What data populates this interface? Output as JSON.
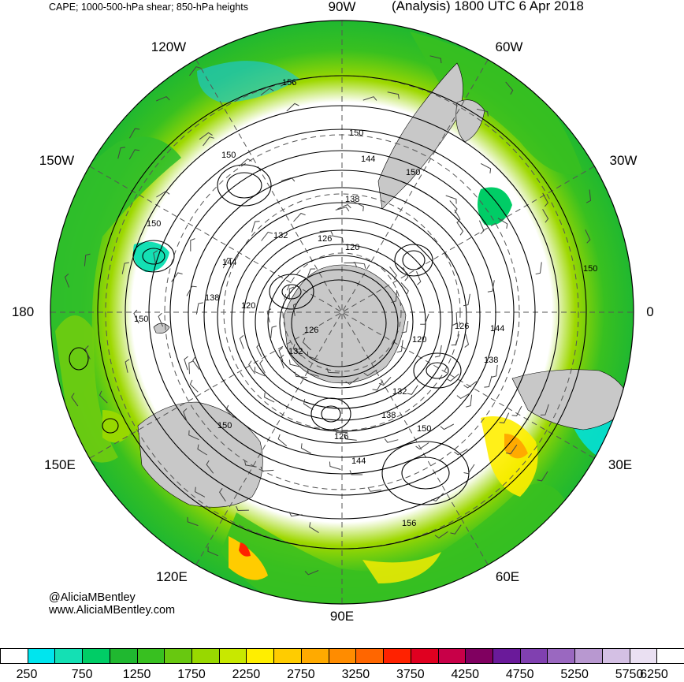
{
  "header": {
    "title_left": "CAPE; 1000-500-hPa shear; 850-hPa heights",
    "title_right": "(Analysis) 1800 UTC 6 Apr 2018"
  },
  "longitude_labels": [
    {
      "text": "90W",
      "deg": 90
    },
    {
      "text": "60W",
      "deg": 60
    },
    {
      "text": "30W",
      "deg": 30
    },
    {
      "text": "0",
      "deg": 0
    },
    {
      "text": "30E",
      "deg": -30
    },
    {
      "text": "60E",
      "deg": -60
    },
    {
      "text": "90E",
      "deg": -90
    },
    {
      "text": "120E",
      "deg": -120
    },
    {
      "text": "150E",
      "deg": -150
    },
    {
      "text": "180",
      "deg": 180
    },
    {
      "text": "150W",
      "deg": 150
    },
    {
      "text": "120W",
      "deg": 120
    }
  ],
  "credits": {
    "handle": "@AliciaMBentley",
    "website": "www.AliciaMBentley.com"
  },
  "height_contour_labels": [
    "156",
    "150",
    "150",
    "144",
    "150",
    "138",
    "150",
    "132",
    "126",
    "120",
    "144",
    "138",
    "120",
    "150",
    "126",
    "132",
    "126",
    "144",
    "120",
    "138",
    "150",
    "132",
    "138",
    "150",
    "126",
    "144",
    "156",
    "150"
  ],
  "colorbar": {
    "colors": [
      "#ffffff",
      "#00e5ee",
      "#14e0b4",
      "#00cd66",
      "#20b830",
      "#38c020",
      "#68c810",
      "#98d800",
      "#c8e800",
      "#ffee00",
      "#ffcc00",
      "#ffaa00",
      "#ff8c00",
      "#ff6600",
      "#ff2200",
      "#e00020",
      "#c80048",
      "#800060",
      "#6a1a9a",
      "#8040b0",
      "#9a68c0",
      "#b898d0",
      "#d4c0e4",
      "#eae0f2",
      "#ffffff"
    ],
    "labels": [
      "250",
      "750",
      "1250",
      "1750",
      "2250",
      "2750",
      "3250",
      "3750",
      "4250",
      "4750",
      "5250",
      "5750",
      "6250"
    ]
  },
  "colors": {
    "land": "#c8c8c8",
    "contour": "#000000",
    "grid": "#555555"
  }
}
